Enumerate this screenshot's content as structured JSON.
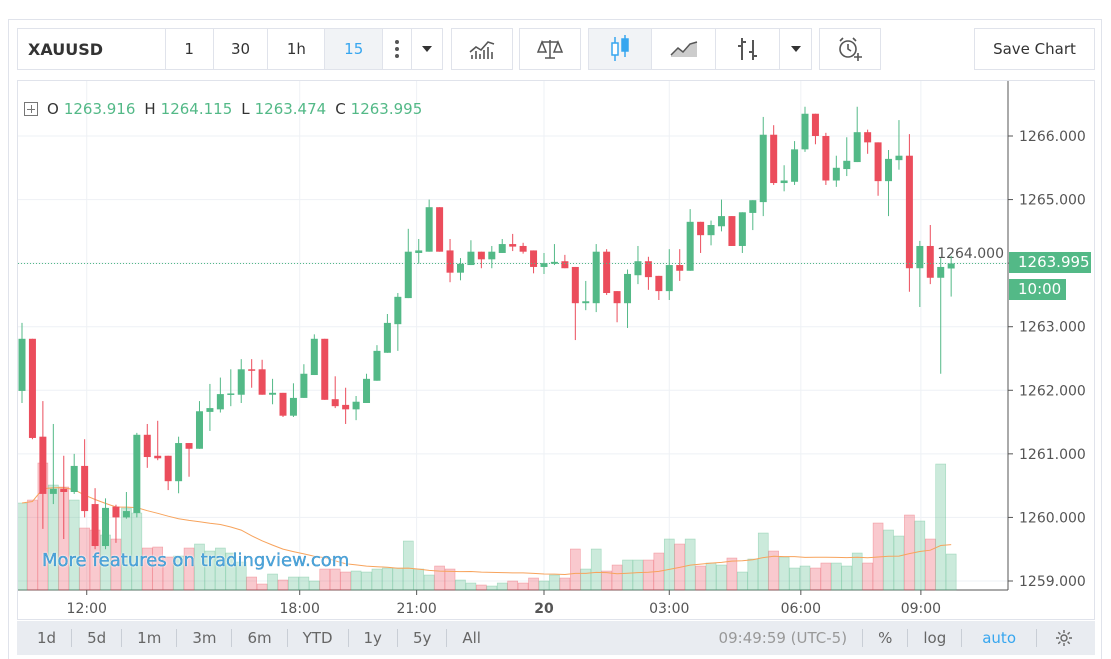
{
  "toolbar": {
    "symbol": "XAUUSD",
    "intervals": [
      "1",
      "30",
      "1h",
      "15"
    ],
    "active_interval": "15",
    "save_label": "Save Chart",
    "icons": [
      "more-vert-icon",
      "chevron-down-icon",
      "indicators-icon",
      "compare-scale-icon",
      "candles-icon",
      "area-line-icon",
      "bars-icon",
      "chevron-down-icon",
      "alert-clock-icon"
    ]
  },
  "legend": {
    "o_label": "O",
    "o": "1263.916",
    "h_label": "H",
    "h": "1264.115",
    "l_label": "L",
    "l": "1263.474",
    "c_label": "C",
    "c": "1263.995"
  },
  "watermark": "More features on tradingview.com",
  "price_axis": {
    "labels": [
      "1266.000",
      "1265.000",
      "1264.000",
      "1263.000",
      "1262.000",
      "1261.000",
      "1260.000",
      "1259.000"
    ],
    "current_price": "1263.995",
    "countdown": "10:00"
  },
  "colors": {
    "up": "#53b987",
    "down": "#eb4d5c",
    "ma": "#f7a35c",
    "accent": "#37a6ef"
  },
  "chart_data": {
    "type": "candlestick",
    "symbol": "XAUUSD",
    "interval": "15",
    "ylim": [
      1259.0,
      1266.6
    ],
    "current_price": 1263.995,
    "x_ticks": [
      {
        "label": "12:00",
        "index": 6.2,
        "bold": false
      },
      {
        "label": "18:00",
        "index": 26.6,
        "bold": false
      },
      {
        "label": "21:00",
        "index": 37.8,
        "bold": false
      },
      {
        "label": "20",
        "index": 50.0,
        "bold": true
      },
      {
        "label": "03:00",
        "index": 62.0,
        "bold": false
      },
      {
        "label": "06:00",
        "index": 74.6,
        "bold": false
      },
      {
        "label": "09:00",
        "index": 86.1,
        "bold": false
      }
    ],
    "ohlc": [
      [
        1261.99,
        1263.06,
        1261.8,
        1262.81
      ],
      [
        1262.81,
        1262.81,
        1261.23,
        1261.25
      ],
      [
        1261.27,
        1261.83,
        1259.82,
        1260.37
      ],
      [
        1260.37,
        1261.47,
        1260.21,
        1260.45
      ],
      [
        1260.45,
        1260.97,
        1259.66,
        1260.4
      ],
      [
        1260.4,
        1261.0,
        1260.37,
        1260.81
      ],
      [
        1260.81,
        1261.23,
        1260.0,
        1260.1
      ],
      [
        1260.21,
        1260.46,
        1259.5,
        1259.55
      ],
      [
        1259.55,
        1260.3,
        1259.5,
        1260.15
      ],
      [
        1260.17,
        1260.2,
        1259.6,
        1260.0
      ],
      [
        1260.0,
        1260.4,
        1259.98,
        1260.1
      ],
      [
        1260.07,
        1261.33,
        1260.0,
        1261.3
      ],
      [
        1261.3,
        1261.47,
        1260.78,
        1260.95
      ],
      [
        1260.97,
        1261.52,
        1260.9,
        1260.93
      ],
      [
        1260.97,
        1260.97,
        1260.43,
        1260.57
      ],
      [
        1260.57,
        1261.27,
        1260.38,
        1261.17
      ],
      [
        1261.17,
        1261.17,
        1260.64,
        1261.08
      ],
      [
        1261.08,
        1261.83,
        1261.08,
        1261.67
      ],
      [
        1261.66,
        1262.1,
        1261.36,
        1261.72
      ],
      [
        1261.7,
        1262.2,
        1261.65,
        1261.94
      ],
      [
        1261.93,
        1262.33,
        1261.75,
        1261.95
      ],
      [
        1261.93,
        1262.49,
        1261.8,
        1262.33
      ],
      [
        1262.33,
        1262.49,
        1262.04,
        1262.31
      ],
      [
        1262.33,
        1262.48,
        1261.93,
        1261.93
      ],
      [
        1261.93,
        1262.18,
        1261.78,
        1261.96
      ],
      [
        1261.96,
        1261.96,
        1261.58,
        1261.6
      ],
      [
        1261.6,
        1262.11,
        1261.58,
        1261.88
      ],
      [
        1261.88,
        1262.41,
        1261.88,
        1262.26
      ],
      [
        1262.24,
        1262.88,
        1262.24,
        1262.81
      ],
      [
        1262.81,
        1262.81,
        1261.85,
        1261.85
      ],
      [
        1261.86,
        1262.22,
        1261.72,
        1261.75
      ],
      [
        1261.77,
        1262.04,
        1261.47,
        1261.7
      ],
      [
        1261.7,
        1261.91,
        1261.53,
        1261.82
      ],
      [
        1261.8,
        1262.26,
        1261.8,
        1262.18
      ],
      [
        1262.15,
        1262.71,
        1262.15,
        1262.62
      ],
      [
        1262.59,
        1263.2,
        1262.59,
        1263.06
      ],
      [
        1263.04,
        1263.53,
        1262.62,
        1263.47
      ],
      [
        1263.45,
        1264.54,
        1263.45,
        1264.18
      ],
      [
        1264.16,
        1264.38,
        1263.99,
        1264.2
      ],
      [
        1264.18,
        1265.0,
        1264.18,
        1264.88
      ],
      [
        1264.88,
        1264.88,
        1264.18,
        1264.18
      ],
      [
        1264.2,
        1264.38,
        1263.7,
        1263.85
      ],
      [
        1263.85,
        1264.08,
        1263.73,
        1263.99
      ],
      [
        1263.97,
        1264.36,
        1263.97,
        1264.18
      ],
      [
        1264.18,
        1264.18,
        1263.92,
        1264.06
      ],
      [
        1264.06,
        1264.27,
        1263.92,
        1264.18
      ],
      [
        1264.16,
        1264.38,
        1264.16,
        1264.3
      ],
      [
        1264.3,
        1264.46,
        1264.19,
        1264.26
      ],
      [
        1264.27,
        1264.32,
        1264.15,
        1264.18
      ],
      [
        1264.2,
        1264.2,
        1263.84,
        1263.94
      ],
      [
        1263.94,
        1264.16,
        1263.83,
        1264.0
      ],
      [
        1263.99,
        1264.3,
        1263.97,
        1264.02
      ],
      [
        1264.03,
        1264.13,
        1263.92,
        1263.92
      ],
      [
        1263.94,
        1263.94,
        1262.79,
        1263.37
      ],
      [
        1263.37,
        1263.72,
        1263.26,
        1263.4
      ],
      [
        1263.37,
        1264.3,
        1263.23,
        1264.18
      ],
      [
        1264.18,
        1264.22,
        1263.5,
        1263.53
      ],
      [
        1263.56,
        1263.56,
        1263.07,
        1263.37
      ],
      [
        1263.37,
        1263.9,
        1262.98,
        1263.83
      ],
      [
        1263.81,
        1264.27,
        1263.67,
        1264.03
      ],
      [
        1264.03,
        1264.1,
        1263.58,
        1263.78
      ],
      [
        1263.8,
        1263.8,
        1263.42,
        1263.56
      ],
      [
        1263.56,
        1264.22,
        1263.42,
        1263.97
      ],
      [
        1263.97,
        1264.22,
        1263.72,
        1263.88
      ],
      [
        1263.88,
        1264.85,
        1263.88,
        1264.65
      ],
      [
        1264.65,
        1264.65,
        1264.16,
        1264.44
      ],
      [
        1264.44,
        1264.67,
        1264.28,
        1264.6
      ],
      [
        1264.58,
        1265.0,
        1264.5,
        1264.74
      ],
      [
        1264.74,
        1264.74,
        1264.27,
        1264.27
      ],
      [
        1264.27,
        1264.8,
        1264.16,
        1264.8
      ],
      [
        1264.79,
        1264.99,
        1264.52,
        1264.99
      ],
      [
        1264.96,
        1266.3,
        1264.74,
        1266.02
      ],
      [
        1266.02,
        1266.17,
        1265.23,
        1265.26
      ],
      [
        1265.26,
        1265.54,
        1265.13,
        1265.3
      ],
      [
        1265.28,
        1265.92,
        1265.23,
        1265.79
      ],
      [
        1265.79,
        1266.46,
        1265.75,
        1266.35
      ],
      [
        1266.35,
        1266.35,
        1265.87,
        1266.0
      ],
      [
        1266.0,
        1266.05,
        1265.23,
        1265.3
      ],
      [
        1265.3,
        1265.69,
        1265.2,
        1265.5
      ],
      [
        1265.48,
        1265.98,
        1265.37,
        1265.61
      ],
      [
        1265.59,
        1266.46,
        1265.59,
        1266.06
      ],
      [
        1266.06,
        1266.1,
        1265.72,
        1265.9
      ],
      [
        1265.9,
        1265.9,
        1265.06,
        1265.29
      ],
      [
        1265.29,
        1265.78,
        1264.74,
        1265.64
      ],
      [
        1265.62,
        1266.25,
        1265.47,
        1265.69
      ],
      [
        1265.69,
        1266.03,
        1263.55,
        1263.92
      ],
      [
        1263.92,
        1264.35,
        1263.31,
        1264.27
      ],
      [
        1264.27,
        1264.6,
        1263.67,
        1263.77
      ],
      [
        1263.77,
        1264.08,
        1262.26,
        1263.94
      ],
      [
        1263.916,
        1264.115,
        1263.474,
        1263.995
      ]
    ],
    "volume": [
      87,
      90,
      127,
      105,
      103,
      90,
      62,
      60,
      55,
      51,
      82,
      77,
      42,
      43,
      33,
      34,
      42,
      46,
      39,
      42,
      37,
      28,
      13,
      6,
      16,
      10,
      13,
      13,
      9,
      21,
      21,
      18,
      19,
      18,
      21,
      22,
      22,
      49,
      21,
      15,
      24,
      21,
      10,
      7,
      5,
      4,
      7,
      9,
      7,
      12,
      9,
      15,
      12,
      41,
      21,
      41,
      19,
      25,
      30,
      30,
      30,
      37,
      51,
      46,
      51,
      24,
      27,
      25,
      32,
      18,
      31,
      57,
      39,
      33,
      22,
      24,
      22,
      27,
      27,
      24,
      37,
      27,
      67,
      60,
      54,
      75,
      69,
      51,
      126,
      36
    ],
    "volume_ma_period": 20
  },
  "bottom_bar": {
    "ranges": [
      "1d",
      "5d",
      "1m",
      "3m",
      "6m",
      "YTD",
      "1y",
      "5y",
      "All"
    ],
    "clock": "09:49:59 (UTC-5)",
    "percent": "%",
    "log": "log",
    "auto": "auto",
    "settings_icon": "gear-icon"
  }
}
